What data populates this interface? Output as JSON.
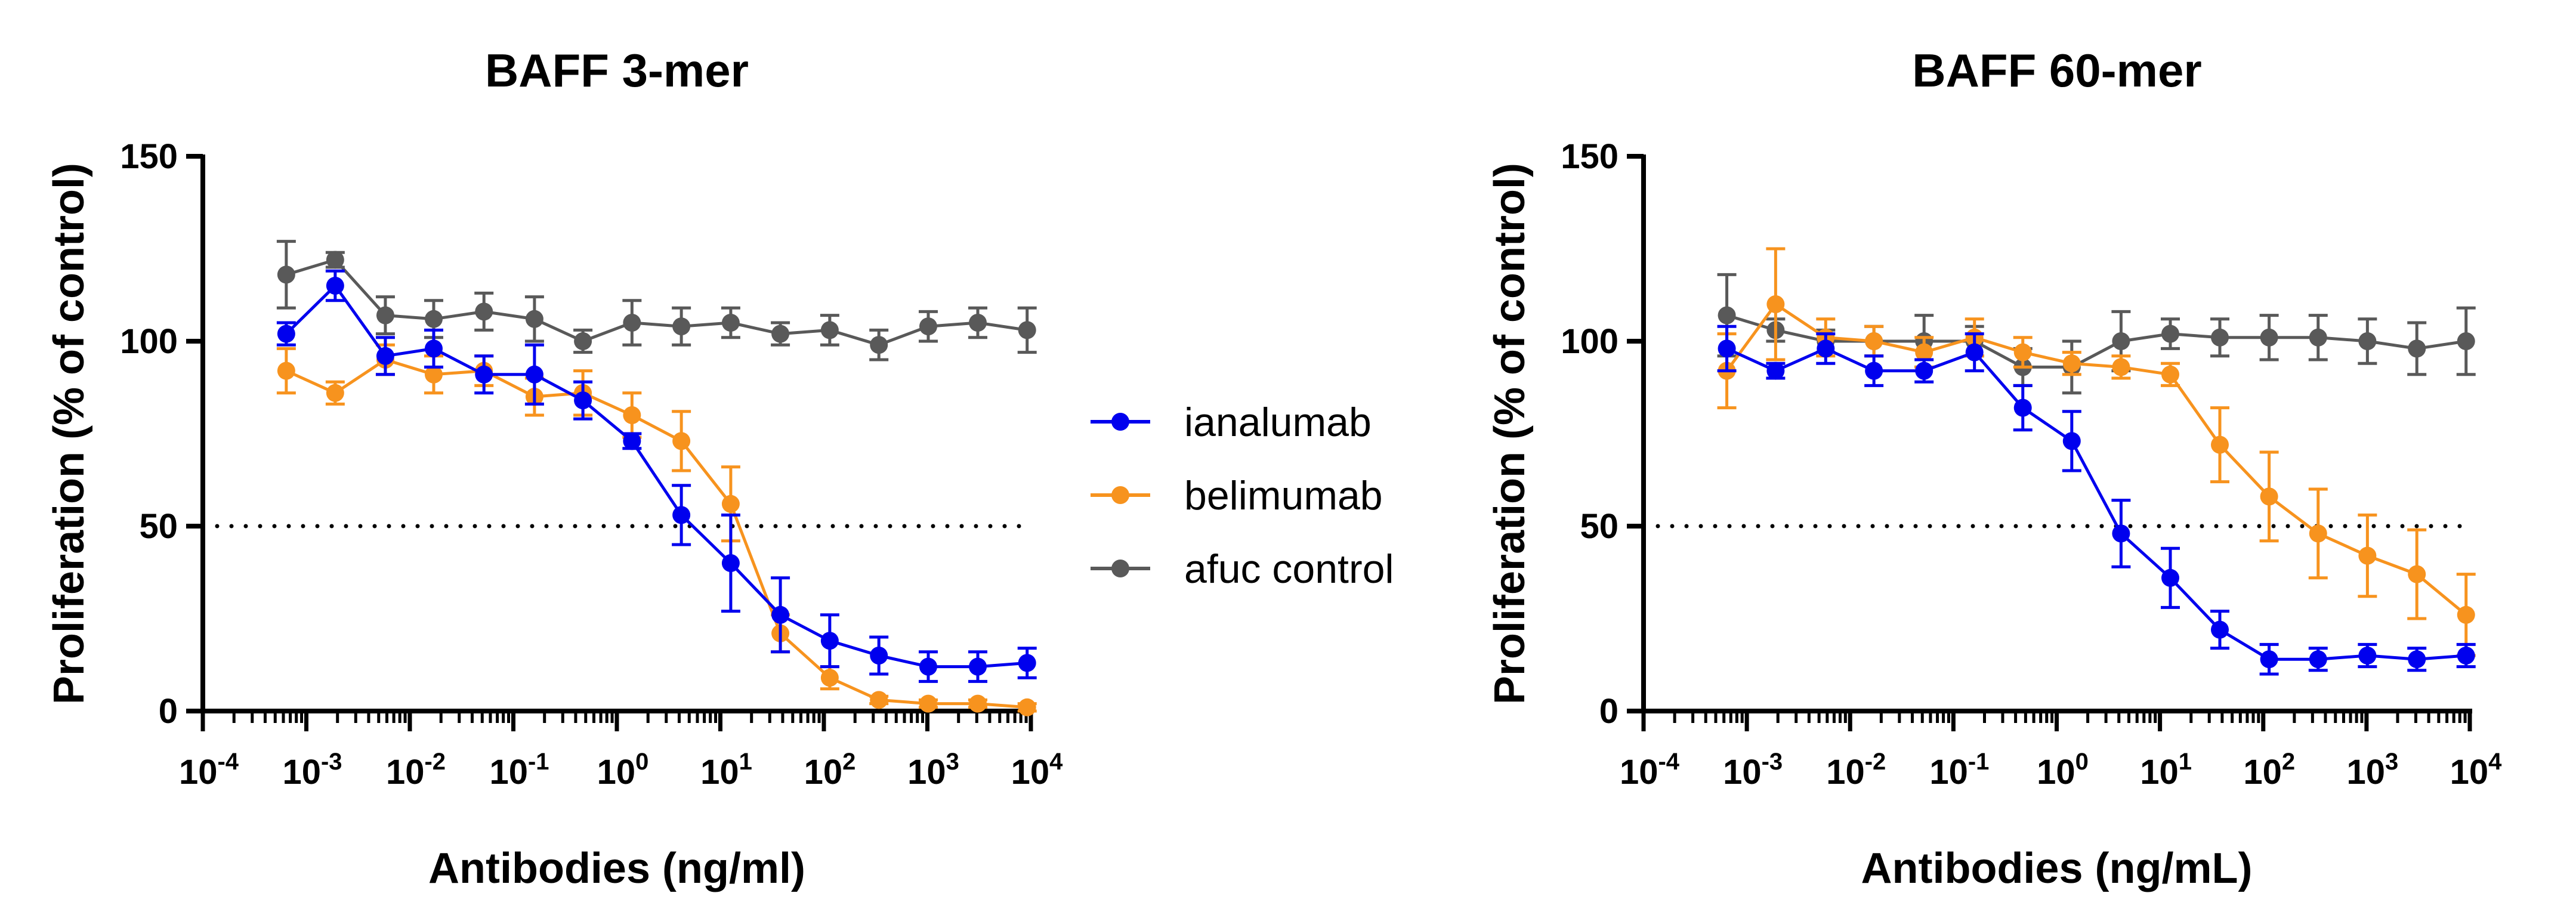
{
  "legend": [
    {
      "name": "ianalumab",
      "color": "#0000EE"
    },
    {
      "name": "belimumab",
      "color": "#F7931E"
    },
    {
      "name": "afuc control",
      "color": "#595959"
    }
  ],
  "chart_data": [
    {
      "type": "line",
      "title": "BAFF 3-mer",
      "xlabel": "Antibodies (ng/ml)",
      "ylabel": "Proliferation (% of control)",
      "xscale": "log",
      "xlim_exp": [
        -4,
        4
      ],
      "ylim": [
        0,
        150
      ],
      "yticks": [
        0,
        50,
        100,
        150
      ],
      "x_tick_base": "10",
      "x_tick_exponents": [
        "-4",
        "-3",
        "-2",
        "-1",
        "0",
        "1",
        "2",
        "3",
        "4"
      ],
      "reference_line": {
        "y": 50,
        "style": "dotted",
        "x_range_exp": [
          -4,
          4
        ]
      },
      "x": [
        0.00064,
        0.0019,
        0.0058,
        0.017,
        0.052,
        0.16,
        0.47,
        1.4,
        4.2,
        12.6,
        38,
        114,
        340,
        1020,
        3070,
        9200
      ],
      "series": [
        {
          "name": "ianalumab",
          "values": [
            102,
            115,
            96,
            98,
            91,
            91,
            84,
            73,
            53,
            40,
            26,
            19,
            15,
            12,
            12,
            13
          ],
          "errors": [
            3,
            4,
            5,
            5,
            5,
            8,
            5,
            2,
            8,
            13,
            10,
            7,
            5,
            4,
            4,
            4
          ]
        },
        {
          "name": "belimumab",
          "values": [
            92,
            86,
            95,
            91,
            92,
            85,
            86,
            80,
            73,
            56,
            21,
            9,
            3,
            2,
            2,
            1
          ],
          "errors": [
            6,
            3,
            4,
            5,
            4,
            5,
            6,
            6,
            8,
            10,
            5,
            3,
            1,
            1,
            1,
            1
          ]
        },
        {
          "name": "afuc control",
          "values": [
            118,
            122,
            107,
            106,
            108,
            106,
            100,
            105,
            104,
            105,
            102,
            103,
            99,
            104,
            105,
            103
          ],
          "errors": [
            9,
            2,
            5,
            5,
            5,
            6,
            3,
            6,
            5,
            4,
            3,
            4,
            4,
            4,
            4,
            6
          ]
        }
      ]
    },
    {
      "type": "line",
      "title": "BAFF 60-mer",
      "xlabel": "Antibodies (ng/mL)",
      "ylabel": "Proliferation (% of control)",
      "xscale": "log",
      "xlim_exp": [
        -4,
        4
      ],
      "ylim": [
        0,
        150
      ],
      "yticks": [
        0,
        50,
        100,
        150
      ],
      "x_tick_base": "10",
      "x_tick_exponents": [
        "-4",
        "-3",
        "-2",
        "-1",
        "0",
        "1",
        "2",
        "3",
        "4"
      ],
      "reference_line": {
        "y": 50,
        "style": "dotted",
        "x_range_exp": [
          -4,
          4
        ]
      },
      "x": [
        0.00064,
        0.0019,
        0.0058,
        0.017,
        0.052,
        0.16,
        0.47,
        1.4,
        4.2,
        12.6,
        38,
        114,
        340,
        1020,
        3070,
        9200
      ],
      "series": [
        {
          "name": "ianalumab",
          "values": [
            98,
            92,
            98,
            92,
            92,
            97,
            82,
            73,
            48,
            36,
            22,
            14,
            14,
            15,
            14,
            15
          ],
          "errors": [
            6,
            2,
            4,
            4,
            3,
            5,
            6,
            8,
            9,
            8,
            5,
            4,
            3,
            3,
            3,
            3
          ]
        },
        {
          "name": "belimumab",
          "values": [
            92,
            110,
            101,
            100,
            97,
            101,
            97,
            94,
            93,
            91,
            72,
            58,
            48,
            42,
            37,
            26
          ],
          "errors": [
            10,
            15,
            5,
            4,
            4,
            5,
            4,
            3,
            3,
            3,
            10,
            12,
            12,
            11,
            12,
            11
          ]
        },
        {
          "name": "afuc control",
          "values": [
            107,
            103,
            100,
            100,
            100,
            100,
            93,
            93,
            100,
            102,
            101,
            101,
            101,
            100,
            98,
            100
          ],
          "errors": [
            11,
            3,
            3,
            4,
            7,
            4,
            5,
            7,
            8,
            4,
            5,
            6,
            6,
            6,
            7,
            9
          ]
        }
      ]
    }
  ]
}
